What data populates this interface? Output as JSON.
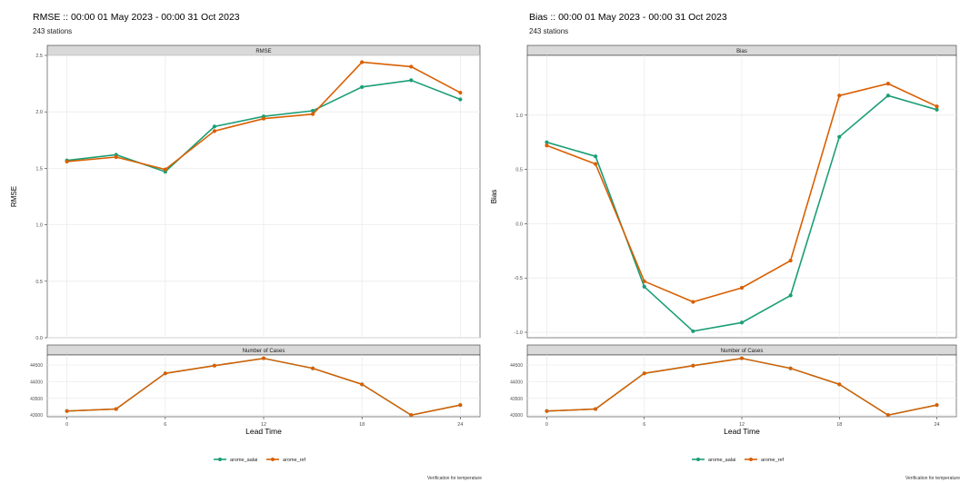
{
  "figure": {
    "caption": "Verification for temperature"
  },
  "chart_data": [
    {
      "type": "line",
      "title": "RMSE :: 00:00 01 May 2023 - 00:00 31 Oct 2023",
      "subtitle": "243 stations",
      "panel_strip": "RMSE",
      "ylabel": "RMSE",
      "xlabel": "Lead Time",
      "x": [
        0,
        3,
        6,
        9,
        12,
        15,
        18,
        21,
        24
      ],
      "xticks": [
        "0",
        "6",
        "12",
        "18",
        "24"
      ],
      "xlim": [
        -1.2,
        25.2
      ],
      "ylim": [
        0.0,
        2.5
      ],
      "yticks": [
        "0.0",
        "0.5",
        "1.0",
        "1.5",
        "2.0",
        "2.5"
      ],
      "series": [
        {
          "name": "arome_aalai",
          "color": "#1b9e77",
          "values": [
            1.57,
            1.62,
            1.47,
            1.87,
            1.96,
            2.01,
            2.22,
            2.28,
            2.11
          ]
        },
        {
          "name": "arome_ref",
          "color": "#d95f02",
          "values": [
            1.56,
            1.6,
            1.49,
            1.83,
            1.94,
            1.98,
            2.44,
            2.4,
            2.17
          ]
        }
      ],
      "cases": {
        "strip": "Number of Cases",
        "yticks": [
          "43000",
          "43500",
          "44000",
          "44500"
        ],
        "ylim": [
          42950,
          44800
        ],
        "values": [
          43120,
          43180,
          44250,
          44480,
          44700,
          44400,
          43920,
          43000,
          43300
        ]
      },
      "grid": true,
      "legend_position": "bottom"
    },
    {
      "type": "line",
      "title": "Bias :: 00:00 01 May 2023 - 00:00 31 Oct 2023",
      "subtitle": "243 stations",
      "panel_strip": "Bias",
      "ylabel": "Bias",
      "xlabel": "Lead Time",
      "x": [
        0,
        3,
        6,
        9,
        12,
        15,
        18,
        21,
        24
      ],
      "xticks": [
        "0",
        "6",
        "12",
        "18",
        "24"
      ],
      "xlim": [
        -1.2,
        25.2
      ],
      "ylim": [
        -1.05,
        1.55
      ],
      "yticks": [
        "-1.0",
        "-0.5",
        "0.0",
        "0.5",
        "1.0"
      ],
      "series": [
        {
          "name": "arome_aalai",
          "color": "#1b9e77",
          "values": [
            0.75,
            0.62,
            -0.58,
            -0.99,
            -0.91,
            -0.66,
            0.8,
            1.18,
            1.05
          ]
        },
        {
          "name": "arome_ref",
          "color": "#d95f02",
          "values": [
            0.72,
            0.55,
            -0.53,
            -0.72,
            -0.59,
            -0.34,
            1.18,
            1.29,
            1.08
          ]
        }
      ],
      "cases": {
        "strip": "Number of Cases",
        "yticks": [
          "43000",
          "43500",
          "44000",
          "44500"
        ],
        "ylim": [
          42950,
          44800
        ],
        "values": [
          43120,
          43180,
          44250,
          44480,
          44700,
          44400,
          43920,
          43000,
          43300
        ]
      },
      "grid": true,
      "legend_position": "bottom"
    }
  ]
}
